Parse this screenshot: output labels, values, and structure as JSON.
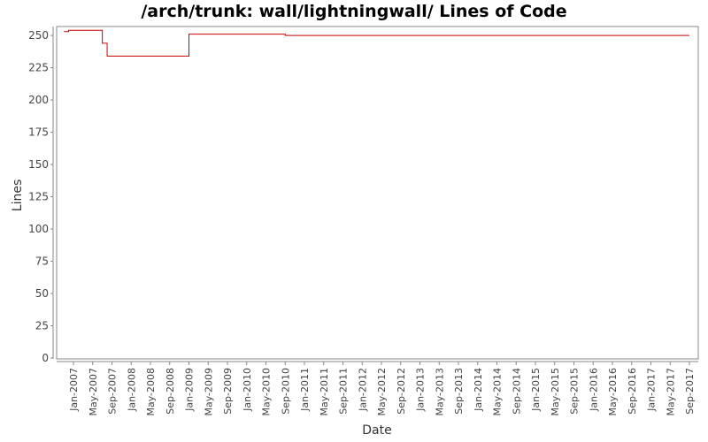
{
  "chart_data": {
    "type": "line",
    "title": "/arch/trunk: wall/lightningwall/ Lines of Code",
    "xlabel": "Date",
    "ylabel": "Lines",
    "ylim": [
      0,
      253
    ],
    "y_ticks": [
      0,
      25,
      50,
      75,
      100,
      125,
      150,
      175,
      200,
      225,
      250
    ],
    "x_ticks": [
      "Jan-2007",
      "May-2007",
      "Sep-2007",
      "Jan-2008",
      "May-2008",
      "Sep-2008",
      "Jan-2009",
      "May-2009",
      "Sep-2009",
      "Jan-2010",
      "May-2010",
      "Sep-2010",
      "Jan-2011",
      "May-2011",
      "Sep-2011",
      "Jan-2012",
      "May-2012",
      "Sep-2012",
      "Jan-2013",
      "May-2013",
      "Sep-2013",
      "Jan-2014",
      "May-2014",
      "Sep-2014",
      "Jan-2015",
      "May-2015",
      "Sep-2015",
      "Jan-2016",
      "May-2016",
      "Sep-2016",
      "Jan-2017",
      "May-2017",
      "Sep-2017"
    ],
    "grid": false,
    "line_color": "#cc0000",
    "series": [
      {
        "step": true,
        "points": [
          {
            "x": "2006-11",
            "y": 253
          },
          {
            "x": "2006-12",
            "y": 254
          },
          {
            "x": "2007-07",
            "y": 244
          },
          {
            "x": "2007-08",
            "y": 234
          },
          {
            "x": "2009-01",
            "y": 251
          },
          {
            "x": "2010-09",
            "y": 250
          },
          {
            "x": "2017-09",
            "y": 250
          }
        ]
      }
    ]
  }
}
